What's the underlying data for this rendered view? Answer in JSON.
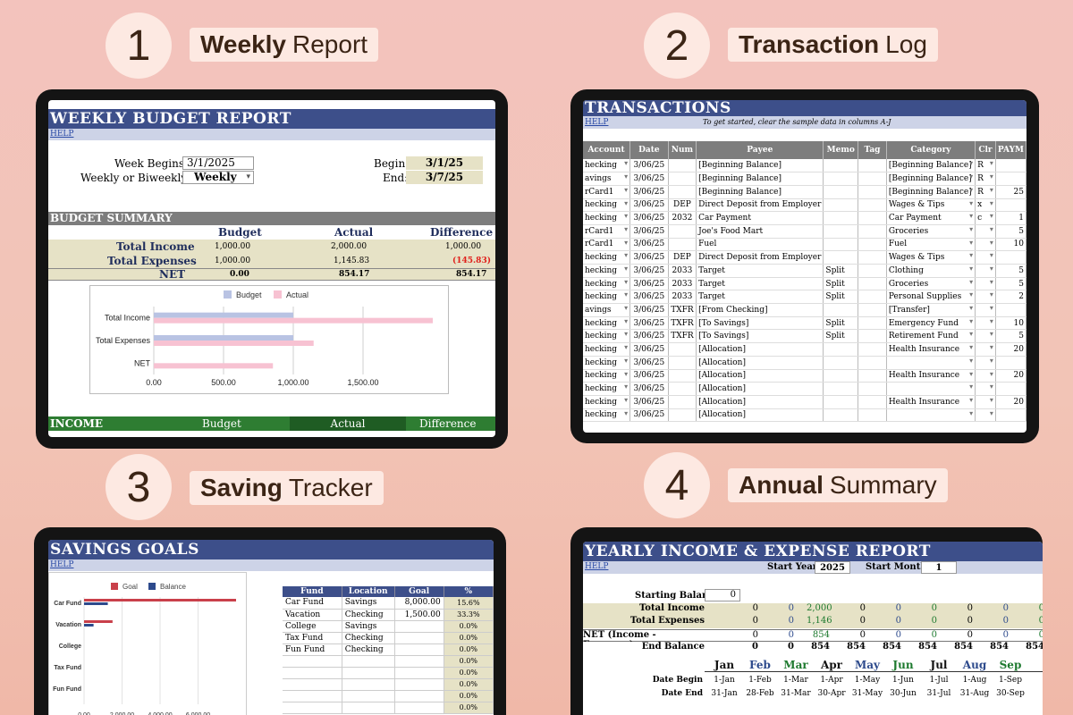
{
  "sections": [
    {
      "number": "1",
      "bold": "Weekly",
      "rest": "Report"
    },
    {
      "number": "2",
      "bold": "Transaction",
      "rest": "Log"
    },
    {
      "number": "3",
      "bold": "Saving",
      "rest": "Tracker"
    },
    {
      "number": "4",
      "bold": "Annual",
      "rest": "Summary"
    }
  ],
  "weekly": {
    "title": "WEEKLY BUDGET REPORT",
    "help": "HELP",
    "week_begins_label": "Week Begins",
    "week_begins_value": "3/1/2025",
    "period_label": "Weekly or Biweekly",
    "period_value": "Weekly",
    "begin_label": "Begin:",
    "begin_value": "3/1/25",
    "end_label": "End:",
    "end_value": "3/7/25",
    "summary_title": "BUDGET SUMMARY",
    "columns": [
      "Budget",
      "Actual",
      "Difference"
    ],
    "rows": [
      {
        "label": "Total Income",
        "budget": "1,000.00",
        "actual": "2,000.00",
        "difference": "1,000.00"
      },
      {
        "label": "Total Expenses",
        "budget": "1,000.00",
        "actual": "1,145.83",
        "difference": "(145.83)"
      },
      {
        "label": "NET",
        "budget": "0.00",
        "actual": "854.17",
        "difference": "854.17"
      }
    ],
    "income_bar": {
      "title": "INCOME",
      "budget": "Budget",
      "actual": "Actual",
      "difference": "Difference"
    },
    "colors": {
      "budget": "#b9c3e3",
      "actual": "#f7c2d2",
      "negative": "#e0201b"
    },
    "chart_data": {
      "type": "bar",
      "orientation": "horizontal",
      "categories": [
        "Total Income",
        "Total Expenses",
        "NET"
      ],
      "series": [
        {
          "name": "Budget",
          "values": [
            1000,
            1000,
            0
          ]
        },
        {
          "name": "Actual",
          "values": [
            2000,
            1145.83,
            854.17
          ]
        }
      ],
      "xticks": [
        "0.00",
        "500.00",
        "1,000.00",
        "1,500.00"
      ],
      "xlim": [
        0,
        2000
      ],
      "legend": "top"
    }
  },
  "transactions": {
    "title": "TRANSACTIONS",
    "help": "HELP",
    "hint": "To get started, clear the sample data in columns A-J",
    "columns": [
      "Account",
      "Date",
      "Num",
      "Payee",
      "Memo",
      "Tag",
      "Category",
      "Clr",
      "PAYM"
    ],
    "rows": [
      [
        "hecking",
        "3/06/25",
        "",
        "[Beginning Balance]",
        "",
        "",
        "[Beginning Balance]",
        "R",
        ""
      ],
      [
        "avings",
        "3/06/25",
        "",
        "[Beginning Balance]",
        "",
        "",
        "[Beginning Balance]",
        "R",
        ""
      ],
      [
        "rCard1",
        "3/06/25",
        "",
        "[Beginning Balance]",
        "",
        "",
        "[Beginning Balance]",
        "R",
        "25"
      ],
      [
        "hecking",
        "3/06/25",
        "DEP",
        "Direct Deposit from Employer",
        "",
        "",
        "Wages & Tips",
        "x",
        ""
      ],
      [
        "hecking",
        "3/06/25",
        "2032",
        "Car Payment",
        "",
        "",
        "Car Payment",
        "c",
        "1"
      ],
      [
        "rCard1",
        "3/06/25",
        "",
        "Joe's Food Mart",
        "",
        "",
        "Groceries",
        "",
        "5"
      ],
      [
        "rCard1",
        "3/06/25",
        "",
        "Fuel",
        "",
        "",
        "Fuel",
        "",
        "10"
      ],
      [
        "hecking",
        "3/06/25",
        "DEP",
        "Direct Deposit from Employer",
        "",
        "",
        "Wages & Tips",
        "",
        ""
      ],
      [
        "hecking",
        "3/06/25",
        "2033",
        "Target",
        "Split",
        "",
        "Clothing",
        "",
        "5"
      ],
      [
        "hecking",
        "3/06/25",
        "2033",
        "Target",
        "Split",
        "",
        "Groceries",
        "",
        "5"
      ],
      [
        "hecking",
        "3/06/25",
        "2033",
        "Target",
        "Split",
        "",
        "Personal Supplies",
        "",
        "2"
      ],
      [
        "avings",
        "3/06/25",
        "TXFR",
        "[From Checking]",
        "",
        "",
        "[Transfer]",
        "",
        ""
      ],
      [
        "hecking",
        "3/06/25",
        "TXFR",
        "[To Savings]",
        "Split",
        "",
        "Emergency Fund",
        "",
        "10"
      ],
      [
        "hecking",
        "3/06/25",
        "TXFR",
        "[To Savings]",
        "Split",
        "",
        "Retirement Fund",
        "",
        "5"
      ],
      [
        "hecking",
        "3/06/25",
        "",
        "[Allocation]",
        "",
        "",
        "Health Insurance",
        "",
        "20"
      ],
      [
        "hecking",
        "3/06/25",
        "",
        "[Allocation]",
        "",
        "",
        "",
        "",
        ""
      ],
      [
        "hecking",
        "3/06/25",
        "",
        "[Allocation]",
        "",
        "",
        "Health Insurance",
        "",
        "20"
      ],
      [
        "hecking",
        "3/06/25",
        "",
        "[Allocation]",
        "",
        "",
        "",
        "",
        ""
      ],
      [
        "hecking",
        "3/06/25",
        "",
        "[Allocation]",
        "",
        "",
        "Health Insurance",
        "",
        "20"
      ],
      [
        "hecking",
        "3/06/25",
        "",
        "[Allocation]",
        "",
        "",
        "",
        "",
        ""
      ]
    ]
  },
  "savings": {
    "title": "SAVINGS GOALS",
    "help": "HELP",
    "colors": {
      "goal": "#c9404a",
      "balance": "#2d4a8c"
    },
    "chart_data": {
      "type": "bar",
      "orientation": "horizontal",
      "categories": [
        "Car Fund",
        "Vacation",
        "College",
        "Tax Fund",
        "Fun Fund"
      ],
      "series": [
        {
          "name": "Goal",
          "values": [
            8000,
            1500,
            0,
            0,
            0
          ]
        },
        {
          "name": "Balance",
          "values": [
            1250,
            500,
            0,
            0,
            0
          ]
        }
      ],
      "xticks": [
        "0.00",
        "2,000.00",
        "4,000.00",
        "6,000.00"
      ],
      "xlim": [
        0,
        8000
      ],
      "legend": "top"
    },
    "columns": [
      "Fund",
      "Location",
      "Goal",
      "%"
    ],
    "rows": [
      [
        "Car Fund",
        "Savings",
        "8,000.00",
        "15.6%"
      ],
      [
        "Vacation",
        "Checking",
        "1,500.00",
        "33.3%"
      ],
      [
        "College",
        "Savings",
        "",
        "0.0%"
      ],
      [
        "Tax Fund",
        "Checking",
        "",
        "0.0%"
      ],
      [
        "Fun Fund",
        "Checking",
        "",
        "0.0%"
      ],
      [
        "",
        "",
        "",
        "0.0%"
      ],
      [
        "",
        "",
        "",
        "0.0%"
      ],
      [
        "",
        "",
        "",
        "0.0%"
      ],
      [
        "",
        "",
        "",
        "0.0%"
      ],
      [
        "",
        "",
        "",
        "0.0%"
      ]
    ]
  },
  "yearly": {
    "title": "YEARLY INCOME & EXPENSE REPORT",
    "help": "HELP",
    "start_year_label": "Start Year",
    "start_year_value": "2025",
    "start_month_label": "Start Month",
    "start_month_value": "1",
    "starting_balance_label": "Starting Balance",
    "starting_balance_value": "0",
    "rows": [
      {
        "label": "Total Income",
        "values": [
          "0",
          "0",
          "2,000",
          "0",
          "0",
          "0",
          "0",
          "0",
          "0"
        ]
      },
      {
        "label": "Total Expenses",
        "values": [
          "0",
          "0",
          "1,146",
          "0",
          "0",
          "0",
          "0",
          "0",
          "0"
        ]
      },
      {
        "label": "NET (Income - Expenses)",
        "values": [
          "0",
          "0",
          "854",
          "0",
          "0",
          "0",
          "0",
          "0",
          "0"
        ]
      },
      {
        "label": "End Balance",
        "values": [
          "0",
          "0",
          "854",
          "854",
          "854",
          "854",
          "854",
          "854",
          "854"
        ]
      }
    ],
    "months": [
      "Jan",
      "Feb",
      "Mar",
      "Apr",
      "May",
      "Jun",
      "Jul",
      "Aug",
      "Sep"
    ],
    "month_colors": [
      "#111111",
      "#2d4a8c",
      "#1e7a2f",
      "#111111",
      "#2d4a8c",
      "#1e7a2f",
      "#111111",
      "#2d4a8c",
      "#1e7a2f"
    ],
    "date_begin_label": "Date Begin",
    "date_end_label": "Date End",
    "date_begin": [
      "1-Jan",
      "1-Feb",
      "1-Mar",
      "1-Apr",
      "1-May",
      "1-Jun",
      "1-Jul",
      "1-Aug",
      "1-Sep"
    ],
    "date_end": [
      "31-Jan",
      "28-Feb",
      "31-Mar",
      "30-Apr",
      "31-May",
      "30-Jun",
      "31-Jul",
      "31-Aug",
      "30-Sep"
    ]
  }
}
